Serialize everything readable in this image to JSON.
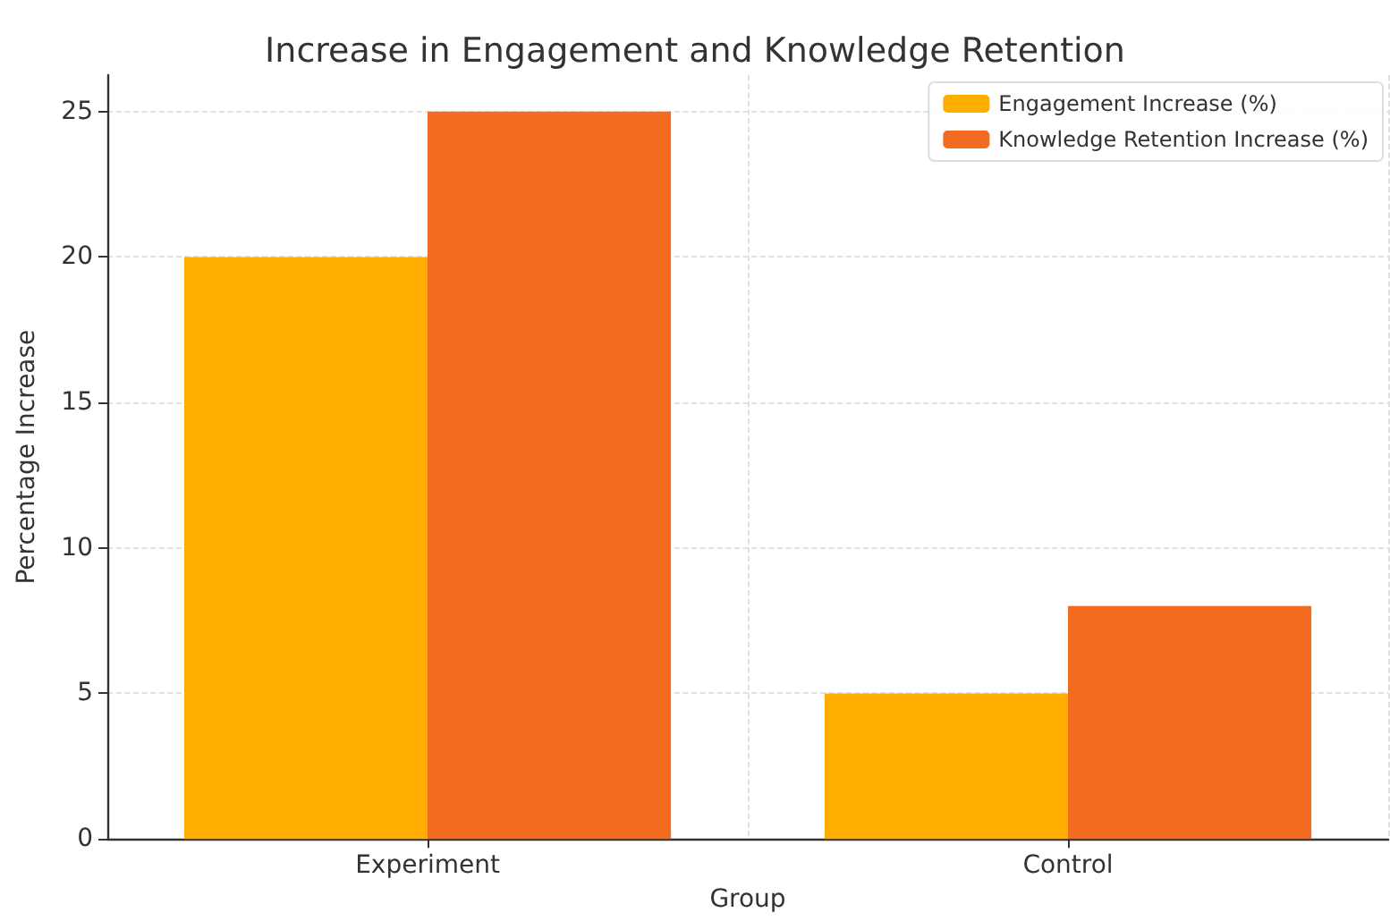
{
  "chart_data": {
    "type": "bar",
    "title": "Increase in Engagement and Knowledge Retention",
    "xlabel": "Group",
    "ylabel": "Percentage Increase",
    "categories": [
      "Experiment",
      "Control"
    ],
    "series": [
      {
        "name": "Engagement Increase (%)",
        "color": "#ffad00",
        "values": [
          20,
          5
        ]
      },
      {
        "name": "Knowledge Retention Increase (%)",
        "color": "#f26b21",
        "values": [
          25,
          8
        ]
      }
    ],
    "ylim": [
      0,
      26.25
    ],
    "yticks": [
      0,
      5,
      10,
      15,
      20,
      25
    ],
    "grid": true,
    "legend": "top right"
  }
}
